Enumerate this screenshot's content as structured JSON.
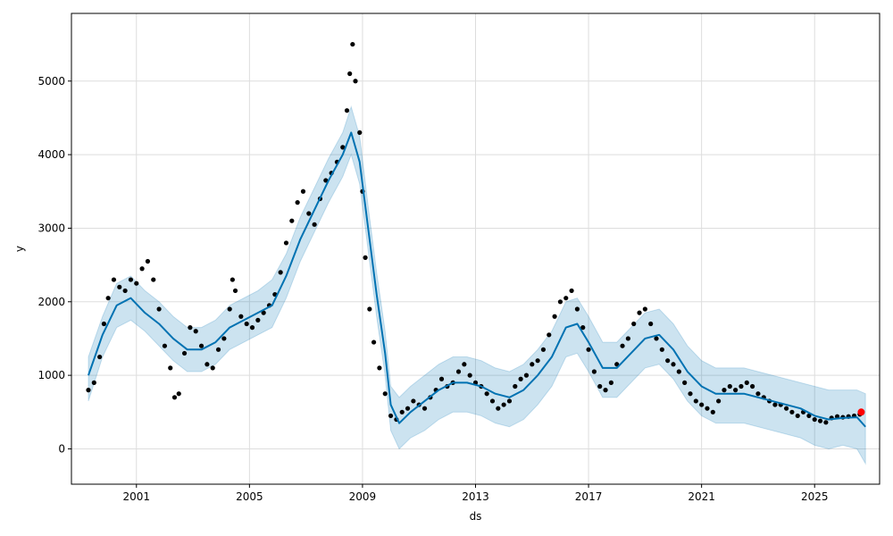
{
  "chart_data": {
    "type": "scatter",
    "title": "",
    "xlabel": "ds",
    "ylabel": "y",
    "xlim": [
      1998.7,
      2027.3
    ],
    "ylim": [
      -480,
      5920
    ],
    "x_ticks": [
      {
        "value": 2001,
        "label": "2001"
      },
      {
        "value": 2005,
        "label": "2005"
      },
      {
        "value": 2009,
        "label": "2009"
      },
      {
        "value": 2013,
        "label": "2013"
      },
      {
        "value": 2017,
        "label": "2017"
      },
      {
        "value": 2021,
        "label": "2021"
      },
      {
        "value": 2025,
        "label": "2025"
      }
    ],
    "y_ticks": [
      {
        "value": 0,
        "label": "0"
      },
      {
        "value": 1000,
        "label": "1000"
      },
      {
        "value": 2000,
        "label": "2000"
      },
      {
        "value": 3000,
        "label": "3000"
      },
      {
        "value": 4000,
        "label": "4000"
      },
      {
        "value": 5000,
        "label": "5000"
      }
    ],
    "grid": true,
    "colors": {
      "observed": "#000000",
      "forecast": "#0072B2",
      "interval_fill": "#0072B2",
      "highlight": "#FF0000",
      "grid": "#dddddd"
    },
    "series": [
      {
        "role": "observed",
        "style": "points",
        "points": [
          [
            1999.3,
            800
          ],
          [
            1999.5,
            900
          ],
          [
            1999.7,
            1250
          ],
          [
            1999.85,
            1700
          ],
          [
            2000.0,
            2050
          ],
          [
            2000.2,
            2300
          ],
          [
            2000.4,
            2200
          ],
          [
            2000.6,
            2150
          ],
          [
            2000.8,
            2300
          ],
          [
            2001.0,
            2250
          ],
          [
            2001.2,
            2450
          ],
          [
            2001.4,
            2550
          ],
          [
            2001.6,
            2300
          ],
          [
            2001.8,
            1900
          ],
          [
            2002.0,
            1400
          ],
          [
            2002.2,
            1100
          ],
          [
            2002.35,
            700
          ],
          [
            2002.5,
            750
          ],
          [
            2002.7,
            1300
          ],
          [
            2002.9,
            1650
          ],
          [
            2003.1,
            1600
          ],
          [
            2003.3,
            1400
          ],
          [
            2003.5,
            1150
          ],
          [
            2003.7,
            1100
          ],
          [
            2003.9,
            1350
          ],
          [
            2004.1,
            1500
          ],
          [
            2004.3,
            1900
          ],
          [
            2004.4,
            2300
          ],
          [
            2004.5,
            2150
          ],
          [
            2004.7,
            1800
          ],
          [
            2004.9,
            1700
          ],
          [
            2005.1,
            1650
          ],
          [
            2005.3,
            1750
          ],
          [
            2005.5,
            1850
          ],
          [
            2005.7,
            1950
          ],
          [
            2005.9,
            2100
          ],
          [
            2006.1,
            2400
          ],
          [
            2006.3,
            2800
          ],
          [
            2006.5,
            3100
          ],
          [
            2006.7,
            3350
          ],
          [
            2006.9,
            3500
          ],
          [
            2007.1,
            3200
          ],
          [
            2007.3,
            3050
          ],
          [
            2007.5,
            3400
          ],
          [
            2007.7,
            3650
          ],
          [
            2007.9,
            3750
          ],
          [
            2008.1,
            3900
          ],
          [
            2008.3,
            4100
          ],
          [
            2008.45,
            4600
          ],
          [
            2008.55,
            5100
          ],
          [
            2008.65,
            5500
          ],
          [
            2008.75,
            5000
          ],
          [
            2008.9,
            4300
          ],
          [
            2009.0,
            3500
          ],
          [
            2009.1,
            2600
          ],
          [
            2009.25,
            1900
          ],
          [
            2009.4,
            1450
          ],
          [
            2009.6,
            1100
          ],
          [
            2009.8,
            750
          ],
          [
            2010.0,
            450
          ],
          [
            2010.2,
            400
          ],
          [
            2010.4,
            500
          ],
          [
            2010.6,
            550
          ],
          [
            2010.8,
            650
          ],
          [
            2011.0,
            600
          ],
          [
            2011.2,
            550
          ],
          [
            2011.4,
            700
          ],
          [
            2011.6,
            800
          ],
          [
            2011.8,
            950
          ],
          [
            2012.0,
            850
          ],
          [
            2012.2,
            900
          ],
          [
            2012.4,
            1050
          ],
          [
            2012.6,
            1150
          ],
          [
            2012.8,
            1000
          ],
          [
            2013.0,
            900
          ],
          [
            2013.2,
            850
          ],
          [
            2013.4,
            750
          ],
          [
            2013.6,
            650
          ],
          [
            2013.8,
            550
          ],
          [
            2014.0,
            600
          ],
          [
            2014.2,
            650
          ],
          [
            2014.4,
            850
          ],
          [
            2014.6,
            950
          ],
          [
            2014.8,
            1000
          ],
          [
            2015.0,
            1150
          ],
          [
            2015.2,
            1200
          ],
          [
            2015.4,
            1350
          ],
          [
            2015.6,
            1550
          ],
          [
            2015.8,
            1800
          ],
          [
            2016.0,
            2000
          ],
          [
            2016.2,
            2050
          ],
          [
            2016.4,
            2150
          ],
          [
            2016.6,
            1900
          ],
          [
            2016.8,
            1650
          ],
          [
            2017.0,
            1350
          ],
          [
            2017.2,
            1050
          ],
          [
            2017.4,
            850
          ],
          [
            2017.6,
            800
          ],
          [
            2017.8,
            900
          ],
          [
            2018.0,
            1150
          ],
          [
            2018.2,
            1400
          ],
          [
            2018.4,
            1500
          ],
          [
            2018.6,
            1700
          ],
          [
            2018.8,
            1850
          ],
          [
            2019.0,
            1900
          ],
          [
            2019.2,
            1700
          ],
          [
            2019.4,
            1500
          ],
          [
            2019.6,
            1350
          ],
          [
            2019.8,
            1200
          ],
          [
            2020.0,
            1150
          ],
          [
            2020.2,
            1050
          ],
          [
            2020.4,
            900
          ],
          [
            2020.6,
            750
          ],
          [
            2020.8,
            650
          ],
          [
            2021.0,
            600
          ],
          [
            2021.2,
            550
          ],
          [
            2021.4,
            500
          ],
          [
            2021.6,
            650
          ],
          [
            2021.8,
            800
          ],
          [
            2022.0,
            850
          ],
          [
            2022.2,
            800
          ],
          [
            2022.4,
            850
          ],
          [
            2022.6,
            900
          ],
          [
            2022.8,
            850
          ],
          [
            2023.0,
            750
          ],
          [
            2023.2,
            700
          ],
          [
            2023.4,
            650
          ],
          [
            2023.6,
            600
          ],
          [
            2023.8,
            600
          ],
          [
            2024.0,
            550
          ],
          [
            2024.2,
            500
          ],
          [
            2024.4,
            450
          ],
          [
            2024.6,
            500
          ],
          [
            2024.8,
            450
          ],
          [
            2025.0,
            400
          ],
          [
            2025.2,
            380
          ],
          [
            2025.4,
            360
          ],
          [
            2025.6,
            420
          ],
          [
            2025.8,
            440
          ],
          [
            2026.0,
            430
          ],
          [
            2026.2,
            440
          ],
          [
            2026.4,
            450
          ],
          [
            2026.6,
            470
          ]
        ]
      },
      {
        "role": "forecast",
        "style": "line",
        "points": [
          [
            1999.3,
            1000
          ],
          [
            1999.8,
            1550
          ],
          [
            2000.3,
            1950
          ],
          [
            2000.8,
            2050
          ],
          [
            2001.3,
            1850
          ],
          [
            2001.8,
            1700
          ],
          [
            2002.3,
            1500
          ],
          [
            2002.8,
            1350
          ],
          [
            2003.3,
            1350
          ],
          [
            2003.8,
            1450
          ],
          [
            2004.3,
            1650
          ],
          [
            2004.8,
            1750
          ],
          [
            2005.3,
            1850
          ],
          [
            2005.8,
            1950
          ],
          [
            2006.3,
            2350
          ],
          [
            2006.8,
            2850
          ],
          [
            2007.3,
            3250
          ],
          [
            2007.8,
            3650
          ],
          [
            2008.3,
            4000
          ],
          [
            2008.6,
            4300
          ],
          [
            2008.9,
            3900
          ],
          [
            2009.2,
            3000
          ],
          [
            2009.5,
            2100
          ],
          [
            2009.8,
            1300
          ],
          [
            2010.0,
            600
          ],
          [
            2010.3,
            350
          ],
          [
            2010.7,
            500
          ],
          [
            2011.2,
            650
          ],
          [
            2011.7,
            800
          ],
          [
            2012.2,
            900
          ],
          [
            2012.7,
            900
          ],
          [
            2013.2,
            850
          ],
          [
            2013.7,
            750
          ],
          [
            2014.2,
            700
          ],
          [
            2014.7,
            800
          ],
          [
            2015.2,
            1000
          ],
          [
            2015.7,
            1250
          ],
          [
            2016.2,
            1650
          ],
          [
            2016.6,
            1700
          ],
          [
            2017.0,
            1450
          ],
          [
            2017.5,
            1100
          ],
          [
            2018.0,
            1100
          ],
          [
            2018.5,
            1300
          ],
          [
            2019.0,
            1500
          ],
          [
            2019.5,
            1550
          ],
          [
            2020.0,
            1350
          ],
          [
            2020.5,
            1050
          ],
          [
            2021.0,
            850
          ],
          [
            2021.5,
            750
          ],
          [
            2022.0,
            750
          ],
          [
            2022.5,
            750
          ],
          [
            2023.0,
            700
          ],
          [
            2023.5,
            650
          ],
          [
            2024.0,
            600
          ],
          [
            2024.5,
            550
          ],
          [
            2025.0,
            450
          ],
          [
            2025.5,
            400
          ],
          [
            2026.0,
            420
          ],
          [
            2026.5,
            430
          ],
          [
            2026.8,
            300
          ]
        ]
      },
      {
        "role": "uncertainty_band",
        "style": "band",
        "points": [
          [
            1999.3,
            650,
            1250
          ],
          [
            1999.8,
            1250,
            1800
          ],
          [
            2000.3,
            1650,
            2250
          ],
          [
            2000.8,
            1750,
            2350
          ],
          [
            2001.3,
            1600,
            2150
          ],
          [
            2001.8,
            1400,
            2000
          ],
          [
            2002.3,
            1200,
            1800
          ],
          [
            2002.8,
            1050,
            1650
          ],
          [
            2003.3,
            1050,
            1650
          ],
          [
            2003.8,
            1150,
            1750
          ],
          [
            2004.3,
            1350,
            1950
          ],
          [
            2004.8,
            1450,
            2050
          ],
          [
            2005.3,
            1550,
            2150
          ],
          [
            2005.8,
            1650,
            2300
          ],
          [
            2006.3,
            2050,
            2650
          ],
          [
            2006.8,
            2550,
            3150
          ],
          [
            2007.3,
            2950,
            3550
          ],
          [
            2007.8,
            3350,
            3950
          ],
          [
            2008.3,
            3700,
            4300
          ],
          [
            2008.6,
            4000,
            4650
          ],
          [
            2008.9,
            3600,
            4250
          ],
          [
            2009.2,
            2700,
            3300
          ],
          [
            2009.5,
            1800,
            2400
          ],
          [
            2009.8,
            1000,
            1600
          ],
          [
            2010.0,
            250,
            850
          ],
          [
            2010.3,
            0,
            700
          ],
          [
            2010.7,
            150,
            850
          ],
          [
            2011.2,
            250,
            1000
          ],
          [
            2011.7,
            400,
            1150
          ],
          [
            2012.2,
            500,
            1250
          ],
          [
            2012.7,
            500,
            1250
          ],
          [
            2013.2,
            450,
            1200
          ],
          [
            2013.7,
            350,
            1100
          ],
          [
            2014.2,
            300,
            1050
          ],
          [
            2014.7,
            400,
            1150
          ],
          [
            2015.2,
            600,
            1350
          ],
          [
            2015.7,
            850,
            1600
          ],
          [
            2016.2,
            1250,
            2000
          ],
          [
            2016.6,
            1300,
            2050
          ],
          [
            2017.0,
            1050,
            1800
          ],
          [
            2017.5,
            700,
            1450
          ],
          [
            2018.0,
            700,
            1450
          ],
          [
            2018.5,
            900,
            1650
          ],
          [
            2019.0,
            1100,
            1850
          ],
          [
            2019.5,
            1150,
            1900
          ],
          [
            2020.0,
            950,
            1700
          ],
          [
            2020.5,
            650,
            1400
          ],
          [
            2021.0,
            450,
            1200
          ],
          [
            2021.5,
            350,
            1100
          ],
          [
            2022.0,
            350,
            1100
          ],
          [
            2022.5,
            350,
            1100
          ],
          [
            2023.0,
            300,
            1050
          ],
          [
            2023.5,
            250,
            1000
          ],
          [
            2024.0,
            200,
            950
          ],
          [
            2024.5,
            150,
            900
          ],
          [
            2025.0,
            50,
            850
          ],
          [
            2025.5,
            0,
            800
          ],
          [
            2026.0,
            50,
            800
          ],
          [
            2026.5,
            0,
            800
          ],
          [
            2026.8,
            -200,
            750
          ]
        ]
      },
      {
        "role": "highlight",
        "style": "points",
        "points": [
          [
            2026.65,
            500
          ]
        ]
      }
    ]
  }
}
